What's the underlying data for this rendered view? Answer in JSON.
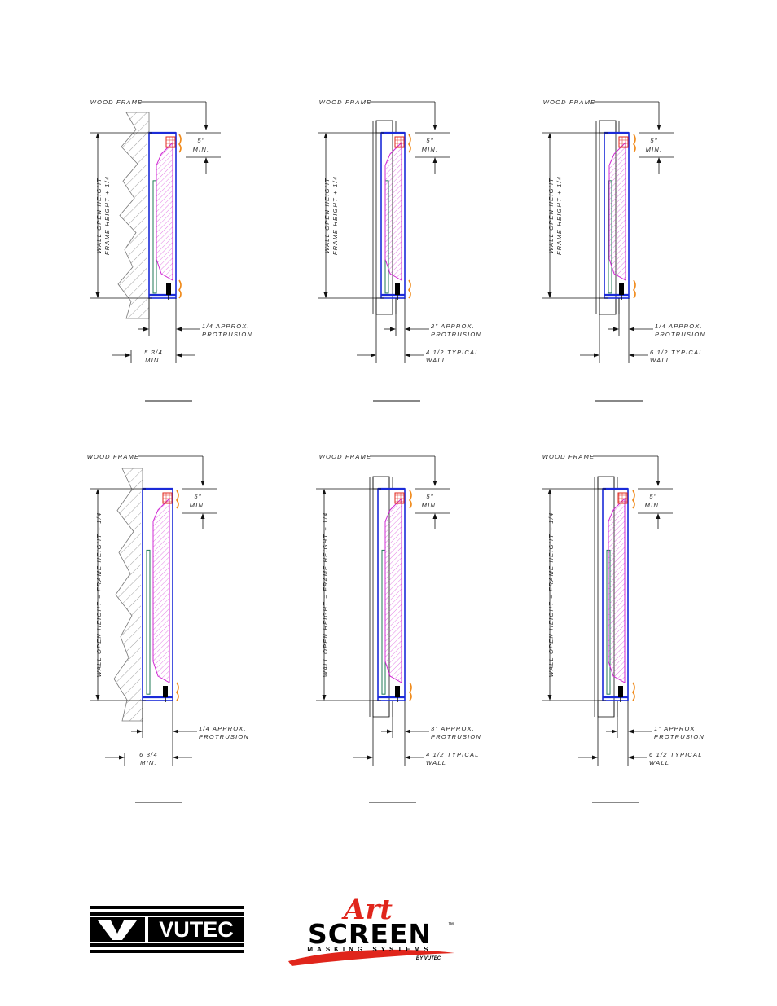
{
  "colors": {
    "line": "#111111",
    "hatch": "#777777",
    "blue": "#1b2bd8",
    "magenta": "#d12bd4",
    "green": "#1f7a55",
    "red": "#e0251b",
    "orange": "#f08a1a"
  },
  "details": [
    {
      "wall_type": "masonry",
      "frame_label": "WOOD FRAME",
      "top_dim": "5\"",
      "top_dim_sub": "MIN.",
      "height_line1": "WALL OPEN HEIGHT",
      "height_line2": "FRAME HEIGHT + 1/4",
      "protrusion_val": "1/4 APPROX.",
      "protrusion_sub": "PROTRUSION",
      "depth_val": "5 3/4",
      "depth_sub": "MIN."
    },
    {
      "wall_type": "stud",
      "frame_label": "WOOD FRAME",
      "top_dim": "5\"",
      "top_dim_sub": "MIN.",
      "height_line1": "WALL OPEN HEIGHT",
      "height_line2": "FRAME HEIGHT + 1/4",
      "protrusion_val": "2\" APPROX.",
      "protrusion_sub": "PROTRUSION",
      "depth_val": "4 1/2 TYPICAL",
      "depth_sub": "WALL"
    },
    {
      "wall_type": "stud",
      "frame_label": "WOOD FRAME",
      "top_dim": "5\"",
      "top_dim_sub": "MIN.",
      "height_line1": "WALL OPEN HEIGHT",
      "height_line2": "FRAME HEIGHT + 1/4",
      "protrusion_val": "1/4 APPROX.",
      "protrusion_sub": "PROTRUSION",
      "depth_val": "6 1/2 TYPICAL",
      "depth_sub": "WALL"
    },
    {
      "wall_type": "masonry",
      "frame_label": "WOOD FRAME",
      "top_dim": "5\"",
      "top_dim_sub": "MIN.",
      "height_line1": "WALL OPEN HEIGHT = FRAME HEIGHT + 1/4",
      "height_line2": "",
      "protrusion_val": "1/4 APPROX.",
      "protrusion_sub": "PROTRUSION",
      "depth_val": "6 3/4",
      "depth_sub": "MIN."
    },
    {
      "wall_type": "stud",
      "frame_label": "WOOD FRAME",
      "top_dim": "5\"",
      "top_dim_sub": "MIN.",
      "height_line1": "WALL OPEN HEIGHT = FRAME HEIGHT + 1/4",
      "height_line2": "",
      "protrusion_val": "3\" APPROX.",
      "protrusion_sub": "PROTRUSION",
      "depth_val": "4 1/2 TYPICAL",
      "depth_sub": "WALL"
    },
    {
      "wall_type": "stud",
      "frame_label": "WOOD FRAME",
      "top_dim": "5\"",
      "top_dim_sub": "MIN.",
      "height_line1": "WALL OPEN HEIGHT = FRAME HEIGHT + 1/4",
      "height_line2": "",
      "protrusion_val": "1\" APPROX.",
      "protrusion_sub": "PROTRUSION",
      "depth_val": "6 1/2 TYPICAL",
      "depth_sub": "WALL"
    }
  ],
  "logos": {
    "vutec": {
      "word": "VUTEC"
    },
    "artscreen": {
      "script": "Art",
      "word": "SCREEN",
      "tm": "™",
      "sub": "MASKING SYSTEMS",
      "by": "BY VUTEC"
    }
  }
}
